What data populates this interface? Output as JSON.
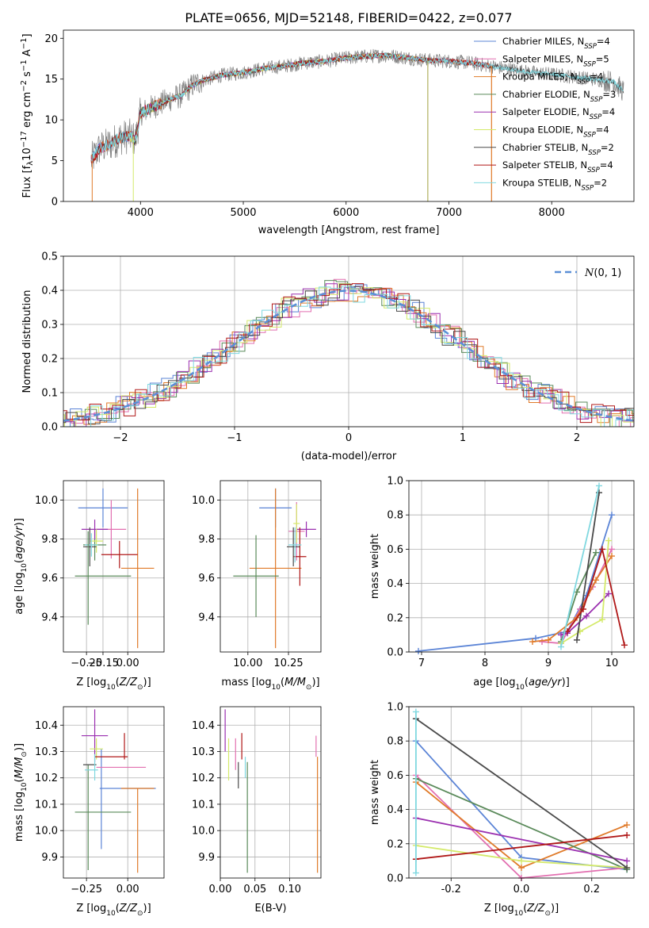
{
  "figure": {
    "title": "PLATE=0656, MJD=52148, FIBERID=0422, z=0.077"
  },
  "colors": {
    "Chabrier MILES": "#5b84d6",
    "Salpeter MILES": "#e26fb0",
    "Kroupa MILES": "#e07b2a",
    "Chabrier ELODIE": "#5a8a5a",
    "Salpeter ELODIE": "#9b30b0",
    "Kroupa ELODIE": "#d4ea6a",
    "Chabrier STELIB": "#4a4a4a",
    "Salpeter STELIB": "#b01818",
    "Kroupa STELIB": "#80d8e0",
    "data": "#808080",
    "gauss": "#5b8fd6"
  },
  "chart_data": [
    {
      "id": "spectrum",
      "type": "line",
      "xlabel": "wavelength [Angstrom, rest frame]",
      "ylabel": "Flux [f_λ10^−17 erg cm^−2 s^−1 A^−1]",
      "xlim": [
        3250,
        8800
      ],
      "ylim": [
        0,
        21
      ],
      "xticks": [
        4000,
        5000,
        6000,
        7000,
        8000
      ],
      "yticks": [
        0,
        5,
        10,
        15,
        20
      ],
      "grid": false,
      "legend_position": "right",
      "continuum": {
        "x": [
          3520,
          3600,
          3700,
          3800,
          3900,
          3950,
          4000,
          4100,
          4200,
          4300,
          4400,
          4500,
          4600,
          4800,
          5000,
          5200,
          5400,
          5600,
          5800,
          6000,
          6200,
          6400,
          6600,
          6800,
          7000,
          7200,
          7400,
          7600,
          7800,
          8000,
          8200,
          8400,
          8600,
          8700
        ],
        "y": [
          5.0,
          6.5,
          7.0,
          7.8,
          8.0,
          7.5,
          10.8,
          11.5,
          12.0,
          12.6,
          13.0,
          14.2,
          14.8,
          15.5,
          15.8,
          16.3,
          16.6,
          17.0,
          17.2,
          17.6,
          17.8,
          17.9,
          17.6,
          17.3,
          17.2,
          17.0,
          16.6,
          16.2,
          15.8,
          15.6,
          15.3,
          15.0,
          14.7,
          13.5
        ]
      },
      "legend": [
        {
          "label": "Chabrier MILES, N_SSP=4",
          "n_ssp": 4
        },
        {
          "label": "Salpeter MILES, N_SSP=5",
          "n_ssp": 5
        },
        {
          "label": "Kroupa MILES, N_SSP=4",
          "n_ssp": 4
        },
        {
          "label": "Chabrier ELODIE, N_SSP=3",
          "n_ssp": 3
        },
        {
          "label": "Salpeter ELODIE, N_SSP=4",
          "n_ssp": 4
        },
        {
          "label": "Kroupa ELODIE, N_SSP=4",
          "n_ssp": 4
        },
        {
          "label": "Chabrier STELIB, N_SSP=2",
          "n_ssp": 2
        },
        {
          "label": "Salpeter STELIB, N_SSP=4",
          "n_ssp": 4
        },
        {
          "label": "Kroupa STELIB, N_SSP=2",
          "n_ssp": 2
        }
      ]
    },
    {
      "id": "residuals",
      "type": "histogram",
      "xlabel": "(data-model)/error",
      "ylabel": "Normed distribution",
      "xlim": [
        -2.5,
        2.5
      ],
      "ylim": [
        0,
        0.5
      ],
      "xticks": [
        -2,
        -1,
        0,
        1,
        2
      ],
      "yticks": [
        0.0,
        0.1,
        0.2,
        0.3,
        0.4,
        0.5
      ],
      "grid": true,
      "legend_position": "top-right",
      "gaussian_label": "N(0,1)",
      "bin_width": 0.1
    },
    {
      "id": "age-vs-Z",
      "type": "errorbar",
      "xlabel": "Z [log10(Z/Z⊙)]",
      "ylabel": "age [log10(age/yr)]",
      "xlim": [
        -0.39,
        0.22
      ],
      "ylim": [
        9.22,
        10.1
      ],
      "xticks": [
        -0.25,
        -0.15,
        0.0
      ],
      "yticks": [
        9.4,
        9.6,
        9.8,
        10.0
      ],
      "grid": true,
      "points": [
        {
          "model": "Chabrier MILES",
          "x": -0.15,
          "xerr": 0.15,
          "y": 9.96,
          "yerr": 0.1
        },
        {
          "model": "Salpeter MILES",
          "x": -0.1,
          "xerr": 0.09,
          "y": 9.85,
          "yerr": 0.15
        },
        {
          "model": "Kroupa MILES",
          "x": 0.06,
          "xerr": 0.1,
          "y": 9.65,
          "yerr": 0.41
        },
        {
          "model": "Chabrier ELODIE",
          "x": -0.2,
          "xerr": 0.07,
          "y": 9.77,
          "yerr": 0.08
        },
        {
          "model": "Salpeter ELODIE",
          "x": -0.2,
          "xerr": 0.08,
          "y": 9.85,
          "yerr": 0.05
        },
        {
          "model": "Kroupa ELODIE",
          "x": -0.19,
          "xerr": 0.04,
          "y": 9.79,
          "yerr": 0.06
        },
        {
          "model": "Chabrier STELIB",
          "x": -0.23,
          "xerr": 0.04,
          "y": 9.76,
          "yerr": 0.1
        },
        {
          "model": "Salpeter STELIB",
          "x": -0.05,
          "xerr": 0.11,
          "y": 9.72,
          "yerr": 0.07
        },
        {
          "model": "Kroupa STELIB",
          "x": -0.22,
          "xerr": 0.04,
          "y": 9.77,
          "yerr": 0.06
        },
        {
          "model": "Chabrier ELODIE",
          "x": -0.15,
          "xerr": 0.17,
          "y": 9.61,
          "yerr": 0.0
        },
        {
          "model": "Chabrier ELODIE",
          "x": -0.24,
          "xerr": 0.0,
          "y": 9.6,
          "yerr": 0.24
        }
      ]
    },
    {
      "id": "age-vs-mass",
      "type": "errorbar",
      "xlabel": "mass [log10(M/M⊙)]",
      "ylabel": "",
      "xlim": [
        9.83,
        10.45
      ],
      "ylim": [
        9.22,
        10.1
      ],
      "xticks": [
        10.0,
        10.25
      ],
      "yticks": [
        9.4,
        9.6,
        9.8,
        10.0
      ],
      "grid": true,
      "points": [
        {
          "model": "Chabrier MILES",
          "x": 10.17,
          "xerr": 0.1,
          "y": 9.96,
          "yerr": 0.1
        },
        {
          "model": "Salpeter MILES",
          "x": 10.3,
          "xerr": 0.05,
          "y": 9.84,
          "yerr": 0.15
        },
        {
          "model": "Kroupa MILES",
          "x": 10.17,
          "xerr": 0.16,
          "y": 9.65,
          "yerr": 0.41
        },
        {
          "model": "Chabrier ELODIE",
          "x": 10.05,
          "xerr": 0.14,
          "y": 9.61,
          "yerr": 0.21
        },
        {
          "model": "Salpeter ELODIE",
          "x": 10.36,
          "xerr": 0.06,
          "y": 9.85,
          "yerr": 0.04
        },
        {
          "model": "Kroupa ELODIE",
          "x": 10.3,
          "xerr": 0.02,
          "y": 9.88,
          "yerr": 0.1
        },
        {
          "model": "Chabrier STELIB",
          "x": 10.28,
          "xerr": 0.04,
          "y": 9.76,
          "yerr": 0.1
        },
        {
          "model": "Salpeter STELIB",
          "x": 10.32,
          "xerr": 0.04,
          "y": 9.71,
          "yerr": 0.15
        },
        {
          "model": "Kroupa STELIB",
          "x": 10.29,
          "xerr": 0.04,
          "y": 9.77,
          "yerr": 0.09
        }
      ]
    },
    {
      "id": "weight-vs-age",
      "type": "line",
      "xlabel": "age [log10(age/yr)]",
      "ylabel": "mass weight",
      "xlim": [
        6.8,
        10.35
      ],
      "ylim": [
        0,
        1.0
      ],
      "xticks": [
        7,
        8,
        9,
        10
      ],
      "yticks": [
        0.0,
        0.2,
        0.4,
        0.6,
        0.8,
        1.0
      ],
      "grid": true,
      "series": [
        {
          "model": "Chabrier MILES",
          "x": [
            6.95,
            8.8,
            9.3,
            9.6,
            10.0
          ],
          "y": [
            0.005,
            0.08,
            0.12,
            0.33,
            0.8
          ]
        },
        {
          "model": "Salpeter MILES",
          "x": [
            8.9,
            9.2,
            9.5,
            9.7,
            10.0
          ],
          "y": [
            0.06,
            0.05,
            0.25,
            0.38,
            0.6
          ]
        },
        {
          "model": "Kroupa MILES",
          "x": [
            8.75,
            9.0,
            9.45,
            9.75,
            10.0
          ],
          "y": [
            0.06,
            0.07,
            0.2,
            0.42,
            0.56
          ]
        },
        {
          "model": "Chabrier ELODIE",
          "x": [
            9.2,
            9.45,
            9.75
          ],
          "y": [
            0.06,
            0.35,
            0.58
          ]
        },
        {
          "model": "Salpeter ELODIE",
          "x": [
            9.2,
            9.3,
            9.6,
            9.95
          ],
          "y": [
            0.1,
            0.11,
            0.21,
            0.34
          ]
        },
        {
          "model": "Kroupa ELODIE",
          "x": [
            9.2,
            9.5,
            9.85,
            9.95
          ],
          "y": [
            0.05,
            0.12,
            0.19,
            0.65
          ]
        },
        {
          "model": "Chabrier STELIB",
          "x": [
            9.45,
            9.8
          ],
          "y": [
            0.07,
            0.93
          ]
        },
        {
          "model": "Salpeter STELIB",
          "x": [
            9.3,
            9.55,
            9.85,
            10.2
          ],
          "y": [
            0.12,
            0.25,
            0.6,
            0.04
          ]
        },
        {
          "model": "Kroupa STELIB",
          "x": [
            9.2,
            9.8
          ],
          "y": [
            0.03,
            0.97
          ]
        }
      ]
    },
    {
      "id": "mass-vs-Z",
      "type": "errorbar",
      "xlabel": "Z [log10(Z/Z⊙)]",
      "ylabel": "mass [log10(M/M⊙)]",
      "xlim": [
        -0.39,
        0.22
      ],
      "ylim": [
        9.82,
        10.47
      ],
      "xticks": [
        -0.25,
        0.0
      ],
      "yticks": [
        9.9,
        10.0,
        10.1,
        10.2,
        10.3,
        10.4
      ],
      "grid": true,
      "points": [
        {
          "model": "Chabrier MILES",
          "x": 0.0,
          "xerr": 0.17,
          "y": 10.16,
          "yerr": 0.0
        },
        {
          "model": "Chabrier MILES",
          "x": -0.16,
          "xerr": 0.0,
          "y": 10.12,
          "yerr": 0.19
        },
        {
          "model": "Salpeter MILES",
          "x": -0.04,
          "xerr": 0.15,
          "y": 10.24,
          "yerr": 0.0
        },
        {
          "model": "Kroupa MILES",
          "x": 0.06,
          "xerr": 0.1,
          "y": 10.16,
          "yerr": 0.0
        },
        {
          "model": "Kroupa MILES",
          "x": 0.06,
          "xerr": 0.0,
          "y": 10.0,
          "yerr": 0.16
        },
        {
          "model": "Chabrier ELODIE",
          "x": -0.15,
          "xerr": 0.17,
          "y": 10.07,
          "yerr": 0.0
        },
        {
          "model": "Chabrier ELODIE",
          "x": -0.24,
          "xerr": 0.0,
          "y": 10.05,
          "yerr": 0.2
        },
        {
          "model": "Salpeter ELODIE",
          "x": -0.2,
          "xerr": 0.08,
          "y": 10.36,
          "yerr": 0.1
        },
        {
          "model": "Kroupa ELODIE",
          "x": -0.19,
          "xerr": 0.04,
          "y": 10.31,
          "yerr": 0.04
        },
        {
          "model": "Chabrier STELIB",
          "x": -0.23,
          "xerr": 0.04,
          "y": 10.25,
          "yerr": 0.0
        },
        {
          "model": "Salpeter STELIB",
          "x": -0.1,
          "xerr": 0.1,
          "y": 10.28,
          "yerr": 0.0
        },
        {
          "model": "Salpeter STELIB",
          "x": -0.02,
          "xerr": 0.0,
          "y": 10.32,
          "yerr": 0.05
        },
        {
          "model": "Kroupa STELIB",
          "x": -0.22,
          "xerr": 0.04,
          "y": 10.23,
          "yerr": 0.0
        },
        {
          "model": "Kroupa STELIB",
          "x": -0.2,
          "xerr": 0.0,
          "y": 10.24,
          "yerr": 0.05
        }
      ]
    },
    {
      "id": "mass-vs-ebv",
      "type": "errorbar",
      "xlabel": "E(B-V)",
      "ylabel": "",
      "xlim": [
        0.0,
        0.145
      ],
      "ylim": [
        9.82,
        10.47
      ],
      "xticks": [
        0.0,
        0.05,
        0.1
      ],
      "yticks": [
        9.9,
        10.0,
        10.1,
        10.2,
        10.3,
        10.4
      ],
      "grid": true,
      "points": [
        {
          "model": "Salpeter ELODIE",
          "x": 0.007,
          "xerr": 0.0,
          "y": 10.38,
          "yerr": 0.08
        },
        {
          "model": "Kroupa ELODIE",
          "x": 0.012,
          "xerr": 0.0,
          "y": 10.27,
          "yerr": 0.08
        },
        {
          "model": "Salpeter MILES",
          "x": 0.022,
          "xerr": 0.0,
          "y": 10.29,
          "yerr": 0.06
        },
        {
          "model": "Chabrier STELIB",
          "x": 0.026,
          "xerr": 0.0,
          "y": 10.21,
          "yerr": 0.05
        },
        {
          "model": "Salpeter STELIB",
          "x": 0.031,
          "xerr": 0.0,
          "y": 10.32,
          "yerr": 0.05
        },
        {
          "model": "Kroupa STELIB",
          "x": 0.036,
          "xerr": 0.0,
          "y": 10.24,
          "yerr": 0.04
        },
        {
          "model": "Chabrier ELODIE",
          "x": 0.039,
          "xerr": 0.0,
          "y": 10.05,
          "yerr": 0.21
        },
        {
          "model": "Salpeter MILES",
          "x": 0.138,
          "xerr": 0.0,
          "y": 10.32,
          "yerr": 0.04
        },
        {
          "model": "Kroupa MILES",
          "x": 0.14,
          "xerr": 0.0,
          "y": 10.06,
          "yerr": 0.22
        }
      ]
    },
    {
      "id": "weight-vs-Z",
      "type": "line",
      "xlabel": "Z [log10(Z/Z⊙)]",
      "ylabel": "mass weight",
      "xlim": [
        -0.32,
        0.32
      ],
      "ylim": [
        0,
        1.0
      ],
      "xticks": [
        -0.2,
        0.0,
        0.2
      ],
      "yticks": [
        0.0,
        0.2,
        0.4,
        0.6,
        0.8,
        1.0
      ],
      "grid": true,
      "series": [
        {
          "model": "Chabrier MILES",
          "x": [
            -0.3,
            0.0,
            0.3
          ],
          "y": [
            0.8,
            0.12,
            0.05
          ]
        },
        {
          "model": "Salpeter MILES",
          "x": [
            -0.3,
            0.0,
            0.3
          ],
          "y": [
            0.6,
            0.0,
            0.06
          ]
        },
        {
          "model": "Kroupa MILES",
          "x": [
            -0.3,
            0.0,
            0.3
          ],
          "y": [
            0.56,
            0.06,
            0.31
          ]
        },
        {
          "model": "Chabrier ELODIE",
          "x": [
            -0.3,
            0.3
          ],
          "y": [
            0.58,
            0.05
          ]
        },
        {
          "model": "Salpeter ELODIE",
          "x": [
            -0.3,
            0.3
          ],
          "y": [
            0.35,
            0.1
          ]
        },
        {
          "model": "Kroupa ELODIE",
          "x": [
            -0.3,
            0.0,
            0.3
          ],
          "y": [
            0.19,
            0.1,
            0.06
          ]
        },
        {
          "model": "Chabrier STELIB",
          "x": [
            -0.3,
            0.3
          ],
          "y": [
            0.93,
            0.06
          ]
        },
        {
          "model": "Salpeter STELIB",
          "x": [
            -0.3,
            0.3
          ],
          "y": [
            0.11,
            0.25
          ]
        },
        {
          "model": "Kroupa STELIB",
          "x": [
            -0.3,
            -0.3
          ],
          "y": [
            0.03,
            0.97
          ]
        }
      ]
    }
  ]
}
